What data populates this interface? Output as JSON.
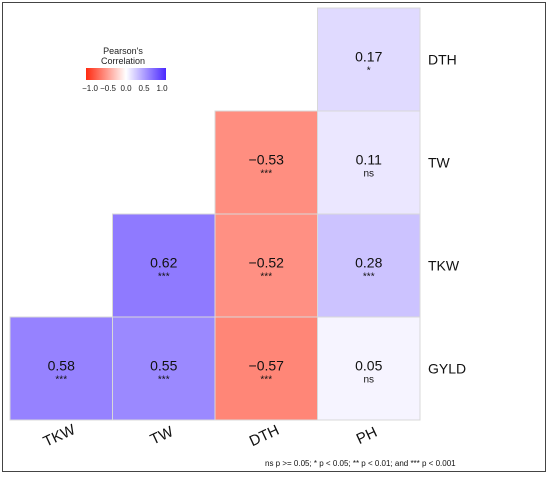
{
  "chart_data": {
    "type": "heatmap",
    "x_labels": [
      "TKW",
      "TW",
      "DTH",
      "PH"
    ],
    "y_labels": [
      "DTH",
      "TW",
      "TKW",
      "GYLD"
    ],
    "cells": [
      {
        "row": "DTH",
        "col": "PH",
        "value": 0.17,
        "label": "0.17",
        "sig": "*"
      },
      {
        "row": "TW",
        "col": "DTH",
        "value": -0.53,
        "label": "−0.53",
        "sig": "***"
      },
      {
        "row": "TW",
        "col": "PH",
        "value": 0.11,
        "label": "0.11",
        "sig": "ns"
      },
      {
        "row": "TKW",
        "col": "TW",
        "value": 0.62,
        "label": "0.62",
        "sig": "***"
      },
      {
        "row": "TKW",
        "col": "DTH",
        "value": -0.52,
        "label": "−0.52",
        "sig": "***"
      },
      {
        "row": "TKW",
        "col": "PH",
        "value": 0.28,
        "label": "0.28",
        "sig": "***"
      },
      {
        "row": "GYLD",
        "col": "TKW",
        "value": 0.58,
        "label": "0.58",
        "sig": "***"
      },
      {
        "row": "GYLD",
        "col": "TW",
        "value": 0.55,
        "label": "0.55",
        "sig": "***"
      },
      {
        "row": "GYLD",
        "col": "DTH",
        "value": -0.57,
        "label": "−0.57",
        "sig": "***"
      },
      {
        "row": "GYLD",
        "col": "PH",
        "value": 0.05,
        "label": "0.05",
        "sig": "ns"
      }
    ],
    "legend": {
      "title_lines": [
        "Pearson's",
        "Correlation"
      ],
      "ticks": [
        "−1.0",
        "−0.5",
        "0.0",
        "0.5",
        "1.0"
      ],
      "range": [
        -1,
        1
      ],
      "placement": "top-left"
    },
    "colors": {
      "negative": "#ff2a10",
      "zero": "#ffffff",
      "positive": "#4a28ff"
    },
    "footnote": "ns p >= 0.05; * p < 0.05; ** p < 0.01; and *** p < 0.001"
  }
}
